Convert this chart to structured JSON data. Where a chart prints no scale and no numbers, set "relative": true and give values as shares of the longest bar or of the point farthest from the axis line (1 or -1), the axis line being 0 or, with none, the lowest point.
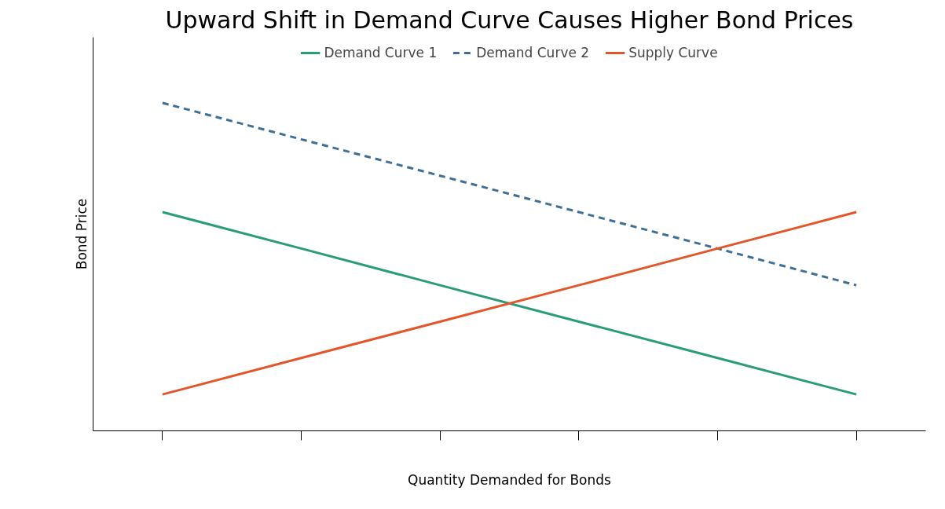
{
  "chart_data": {
    "type": "line",
    "title": "Upward Shift in Demand Curve Causes Higher Bond Prices",
    "xlabel": "Quantity Demanded for Bonds",
    "ylabel": "Bond Price",
    "categories": [
      null,
      null,
      null,
      null,
      null,
      null
    ],
    "relative": true,
    "legend": "top",
    "series": [
      {
        "name": "Demand Curve 1",
        "color": "#2a9d78",
        "line_style": "solid",
        "values": [
          0.667,
          0.556,
          0.444,
          0.333,
          0.222,
          0.111
        ]
      },
      {
        "name": "Demand Curve 2",
        "color": "#3f6f94",
        "line_style": "dashed",
        "values": [
          1,
          0.889,
          0.778,
          0.667,
          0.556,
          0.444
        ]
      },
      {
        "name": "Supply Curve",
        "color": "#e3562a",
        "line_style": "solid",
        "values": [
          0.111,
          0.222,
          0.333,
          0.444,
          0.556,
          0.667
        ]
      }
    ]
  }
}
